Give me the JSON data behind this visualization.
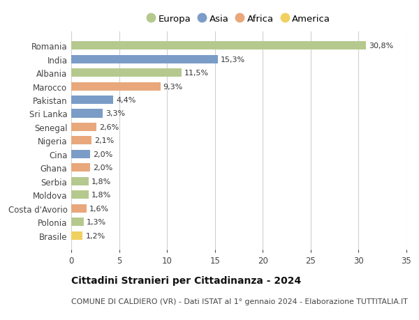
{
  "countries": [
    "Romania",
    "India",
    "Albania",
    "Marocco",
    "Pakistan",
    "Sri Lanka",
    "Senegal",
    "Nigeria",
    "Cina",
    "Ghana",
    "Serbia",
    "Moldova",
    "Costa d'Avorio",
    "Polonia",
    "Brasile"
  ],
  "values": [
    30.8,
    15.3,
    11.5,
    9.3,
    4.4,
    3.3,
    2.6,
    2.1,
    2.0,
    2.0,
    1.8,
    1.8,
    1.6,
    1.3,
    1.2
  ],
  "labels": [
    "30,8%",
    "15,3%",
    "11,5%",
    "9,3%",
    "4,4%",
    "3,3%",
    "2,6%",
    "2,1%",
    "2,0%",
    "2,0%",
    "1,8%",
    "1,8%",
    "1,6%",
    "1,3%",
    "1,2%"
  ],
  "continents": [
    "Europa",
    "Asia",
    "Europa",
    "Africa",
    "Asia",
    "Asia",
    "Africa",
    "Africa",
    "Asia",
    "Africa",
    "Europa",
    "Europa",
    "Africa",
    "Europa",
    "America"
  ],
  "colors": {
    "Europa": "#b5c98e",
    "Asia": "#7b9cc7",
    "Africa": "#e8a87c",
    "America": "#f0d060"
  },
  "legend_order": [
    "Europa",
    "Asia",
    "Africa",
    "America"
  ],
  "title": "Cittadini Stranieri per Cittadinanza - 2024",
  "subtitle": "COMUNE DI CALDIERO (VR) - Dati ISTAT al 1° gennaio 2024 - Elaborazione TUTTITALIA.IT",
  "xlim": [
    0,
    35
  ],
  "xticks": [
    0,
    5,
    10,
    15,
    20,
    25,
    30,
    35
  ],
  "background_color": "#ffffff",
  "grid_color": "#d0d0d0",
  "bar_height": 0.62,
  "label_fontsize": 8,
  "ytick_fontsize": 8.5,
  "xtick_fontsize": 8.5,
  "legend_fontsize": 9.5,
  "title_fontsize": 10,
  "subtitle_fontsize": 7.8
}
